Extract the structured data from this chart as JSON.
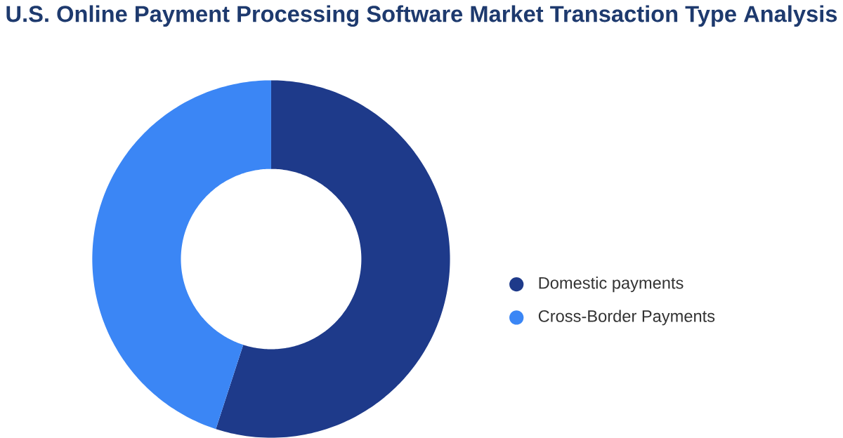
{
  "chart_data": {
    "type": "donut",
    "title": "U.S. Online Payment Processing Software Market Transaction Type Analysis",
    "categories": [
      "Domestic payments",
      "Cross-Border Payments"
    ],
    "values": [
      55,
      45
    ],
    "colors": [
      "#1e3a8a",
      "#3b86f5"
    ],
    "legend": "right"
  }
}
